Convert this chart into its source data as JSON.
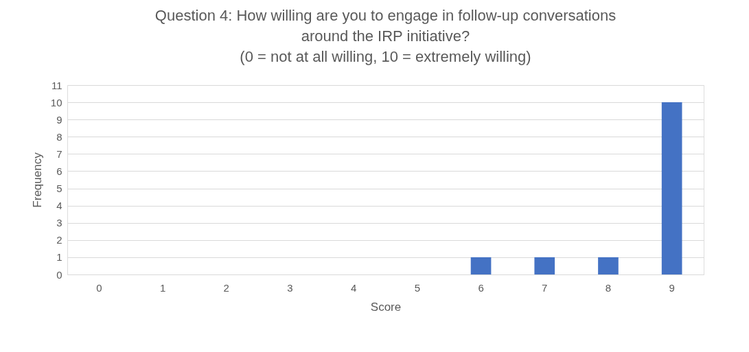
{
  "chart_data": {
    "type": "bar",
    "title": "Question 4: How willing are you to engage in follow-up conversations\naround the IRP initiative?\n(0 = not at all willing, 10 = extremely willing)",
    "xlabel": "Score",
    "ylabel": "Frequency",
    "categories": [
      "0",
      "1",
      "2",
      "3",
      "4",
      "5",
      "6",
      "7",
      "8",
      "9"
    ],
    "values": [
      0,
      0,
      0,
      0,
      0,
      0,
      1,
      1,
      1,
      10
    ],
    "color": "#4472c4",
    "ylim": [
      0,
      11
    ],
    "yticks": [
      0,
      1,
      2,
      3,
      4,
      5,
      6,
      7,
      8,
      9,
      10,
      11
    ],
    "grid": "y"
  }
}
